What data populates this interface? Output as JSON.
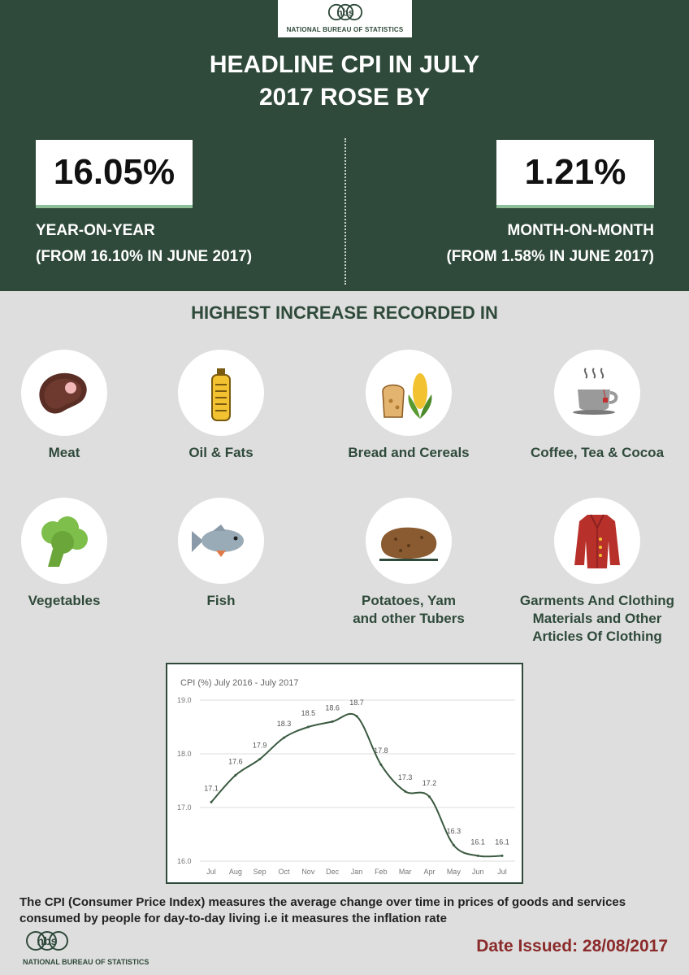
{
  "header": {
    "logo_mark": "nbs",
    "logo_text": "NATIONAL BUREAU OF STATISTICS",
    "headline_line1": "HEADLINE CPI IN JULY",
    "headline_line2": "2017 ROSE BY"
  },
  "yoy": {
    "value": "16.05%",
    "label": "YEAR-ON-YEAR",
    "from": "(FROM 16.10% IN JUNE 2017)"
  },
  "mom": {
    "value": "1.21%",
    "label": "MONTH-ON-MONTH",
    "from": "(FROM 1.58% IN JUNE 2017)"
  },
  "section_title": "HIGHEST INCREASE RECORDED IN",
  "categories": [
    {
      "label": "Meat",
      "icon": "meat-icon"
    },
    {
      "label": "Oil & Fats",
      "icon": "oil-bottle-icon"
    },
    {
      "label": "Bread and Cereals",
      "icon": "bread-corn-icon"
    },
    {
      "label": "Coffee, Tea & Cocoa",
      "icon": "tea-cup-icon"
    },
    {
      "label": "Vegetables",
      "icon": "broccoli-icon"
    },
    {
      "label": "Fish",
      "icon": "fish-icon"
    },
    {
      "label": "Potatoes, Yam\nand other Tubers",
      "icon": "potato-icon"
    },
    {
      "label": "Garments And Clothing\nMaterials and Other\nArticles Of Clothing",
      "icon": "coat-icon"
    }
  ],
  "chart_data": {
    "type": "line",
    "title": "CPI  (%) July 2016 - July 2017",
    "categories": [
      "Jul",
      "Aug",
      "Sep",
      "Oct",
      "Nov",
      "Dec",
      "Jan",
      "Feb",
      "Mar",
      "Apr",
      "May",
      "Jun",
      "Jul"
    ],
    "values": [
      17.1,
      17.6,
      17.9,
      18.3,
      18.5,
      18.6,
      18.7,
      17.8,
      17.3,
      17.2,
      16.3,
      16.1,
      16.1
    ],
    "yticks": [
      16.0,
      17.0,
      18.0,
      19.0
    ],
    "ylim": [
      16.0,
      19.0
    ],
    "grid": true,
    "line_color": "#3a5a40"
  },
  "footer": {
    "description": "The CPI (Consumer Price Index) measures the average change over time in prices of goods and services consumed by people for day-to-day living i.e it measures the inflation rate",
    "logo_mark": "nbs",
    "logo_text": "NATIONAL BUREAU OF STATISTICS",
    "date": "Date Issued: 28/08/2017"
  }
}
